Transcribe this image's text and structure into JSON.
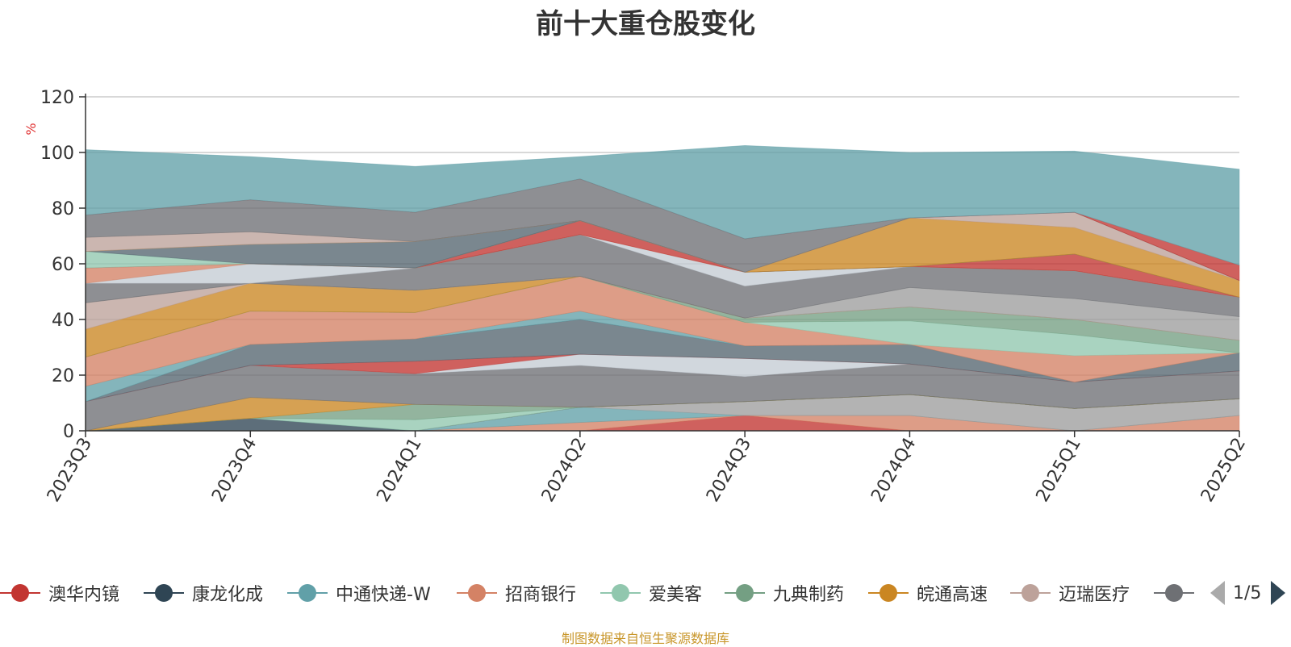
{
  "colors": [
    "#c23531",
    "#2f4554",
    "#61a0a8",
    "#d48265",
    "#91c7ae",
    "#749f83",
    "#ca8622",
    "#bda29a",
    "#6e7074",
    "#546570",
    "#c4ccd3"
  ],
  "chart_data": {
    "type": "area",
    "title": "前十大重仓股变化",
    "ylabel": "%",
    "xlabel": "",
    "ylim": [
      0,
      120
    ],
    "yticks": [
      0,
      20,
      40,
      60,
      80,
      100,
      120
    ],
    "grid": true,
    "stacked": true,
    "x": [
      "2023Q3",
      "2023Q4",
      "2024Q1",
      "2024Q2",
      "2024Q3",
      "2024Q4",
      "2025Q1",
      "2025Q2"
    ],
    "series": [
      {
        "name": "澳华内镜",
        "color": "#c23531",
        "values": [
          0,
          0,
          0,
          0,
          5.5,
          0,
          0,
          0
        ]
      },
      {
        "name": "",
        "color": "#d48265",
        "values": [
          0,
          0,
          0,
          3,
          0,
          5.5,
          0,
          5.5
        ]
      },
      {
        "name": "",
        "color": "#61a0a8",
        "values": [
          0,
          0,
          0,
          5.5,
          0,
          0,
          0,
          0
        ]
      },
      {
        "name": "",
        "color": "#9e9e9e",
        "values": [
          0,
          0,
          0,
          0,
          5,
          7.5,
          8,
          6
        ]
      },
      {
        "name": "",
        "color": "#bda29a",
        "values": [
          0,
          0,
          0,
          0,
          0,
          0,
          0,
          0
        ]
      },
      {
        "name": "康龙化成",
        "color": "#2f4554",
        "values": [
          0,
          4.5,
          0,
          0,
          0,
          0,
          0,
          0
        ]
      },
      {
        "name": "",
        "color": "#91c7ae",
        "values": [
          0,
          0,
          4,
          0,
          0,
          0,
          0,
          0
        ]
      },
      {
        "name": "",
        "color": "#749f83",
        "values": [
          0,
          0,
          5.5,
          0,
          0,
          0,
          0,
          0
        ]
      },
      {
        "name": "皖通高速",
        "color": "#ca8622",
        "values": [
          0,
          7.5,
          0,
          0,
          0,
          0,
          0,
          0
        ]
      },
      {
        "name": "",
        "color": "#6e7074",
        "values": [
          10.5,
          11.5,
          11,
          15,
          9,
          11,
          9.5,
          10
        ]
      },
      {
        "name": "",
        "color": "#c4ccd3",
        "values": [
          0,
          0,
          0,
          4,
          6.5,
          0,
          0,
          0
        ]
      },
      {
        "name": "",
        "color": "#c23531",
        "values": [
          0,
          0,
          4.5,
          0,
          0,
          0,
          0,
          0
        ]
      },
      {
        "name": "",
        "color": "#546570",
        "values": [
          0,
          7.5,
          8,
          12.5,
          4.5,
          7,
          0,
          6.5
        ]
      },
      {
        "name": "中通快递-W",
        "color": "#61a0a8",
        "values": [
          5.5,
          0,
          0,
          3,
          0,
          0,
          0,
          0
        ]
      },
      {
        "name": "招商银行",
        "color": "#d48265",
        "values": [
          10.5,
          12,
          9.5,
          12.5,
          8.5,
          0,
          9.5,
          0
        ]
      },
      {
        "name": "",
        "color": "#91c7ae",
        "values": [
          0,
          0,
          0,
          0,
          0,
          8.5,
          7.5,
          0
        ]
      },
      {
        "name": "九典制药",
        "color": "#749f83",
        "values": [
          0,
          0,
          0,
          0,
          1.5,
          5,
          5.5,
          4.5
        ]
      },
      {
        "name": "",
        "color": "#ca8622",
        "values": [
          10,
          10,
          8,
          0,
          0,
          0,
          0,
          0
        ]
      },
      {
        "name": "迈瑞医疗",
        "color": "#bda29a",
        "values": [
          9.5,
          0,
          0,
          0,
          0,
          0,
          0,
          0
        ]
      },
      {
        "name": "",
        "color": "#9e9e9e",
        "values": [
          0,
          0,
          0,
          0,
          0,
          7,
          7.5,
          8.5
        ]
      },
      {
        "name": "",
        "color": "#6e7074",
        "values": [
          7,
          0,
          8,
          15,
          11.5,
          7.5,
          10,
          7
        ]
      },
      {
        "name": "",
        "color": "#c4ccd3",
        "values": [
          0,
          7,
          0,
          0,
          5,
          0,
          0,
          0
        ]
      },
      {
        "name": "",
        "color": "#d48265",
        "values": [
          5.5,
          0,
          0,
          0,
          0,
          0,
          0,
          0
        ]
      },
      {
        "name": "",
        "color": "#c23531",
        "values": [
          0,
          0,
          0,
          5,
          0,
          0,
          6,
          0
        ]
      },
      {
        "name": "",
        "color": "#91c7ae",
        "values": [
          6,
          0,
          0,
          0,
          0,
          0,
          0,
          0
        ]
      },
      {
        "name": "",
        "color": "#546570",
        "values": [
          0,
          7,
          9.5,
          0,
          0,
          0,
          0,
          0
        ]
      },
      {
        "name": "",
        "color": "#ca8622",
        "values": [
          0,
          0,
          0,
          0,
          0,
          17.5,
          9.5,
          6
        ]
      },
      {
        "name": "",
        "color": "#bda29a",
        "values": [
          5,
          4.5,
          0,
          0,
          0,
          0,
          5.5,
          0
        ]
      },
      {
        "name": "",
        "color": "#6e7074",
        "values": [
          8,
          11.5,
          10.5,
          15,
          12,
          0,
          0,
          0
        ]
      },
      {
        "name": "",
        "color": "#c23531",
        "values": [
          0,
          0,
          0,
          0,
          0,
          0,
          0,
          5.5
        ]
      },
      {
        "name": "",
        "color": "#61a0a8",
        "values": [
          23.5,
          15.5,
          16.5,
          8,
          33.5,
          23.5,
          22,
          34.5
        ]
      }
    ]
  },
  "legend": {
    "items": [
      "澳华内镜",
      "康龙化成",
      "中通快递-W",
      "招商银行",
      "爱美客",
      "九典制药",
      "皖通高速",
      "迈瑞医疗",
      ""
    ],
    "page": "1/5"
  },
  "source_note": "制图数据来自恒生聚源数据库"
}
